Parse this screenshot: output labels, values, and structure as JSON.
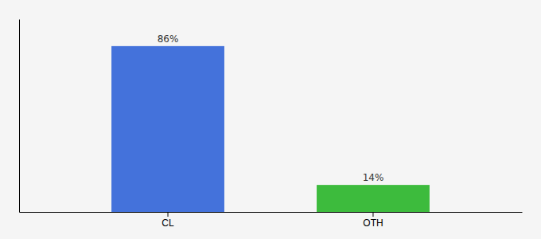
{
  "chart_data": {
    "type": "bar",
    "categories": [
      "CL",
      "OTH"
    ],
    "values": [
      86,
      14
    ],
    "colors": [
      "#4472db",
      "#3dbb3d"
    ],
    "data_labels": true,
    "value_labels": [
      "86%",
      "14%"
    ],
    "ylim": [
      0,
      100
    ],
    "tick_labels": "x"
  }
}
